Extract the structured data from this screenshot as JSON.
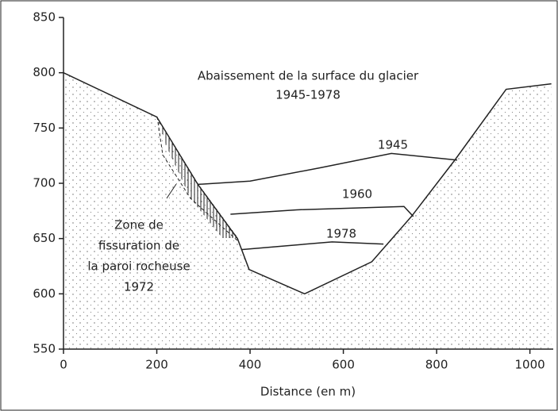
{
  "chart_data": {
    "type": "line",
    "title": "Abaissement de la surface du glacier",
    "subtitle": "1945-1978",
    "x_label": "Distance (en m)",
    "annotations": [
      "Zone de",
      "fissuration de",
      "la paroi rocheuse",
      "1972"
    ],
    "xlim": [
      0,
      1050
    ],
    "ylim": [
      550,
      850
    ],
    "xticks": [
      0,
      200,
      400,
      600,
      800,
      1000
    ],
    "yticks": [
      550,
      600,
      650,
      700,
      750,
      800,
      850
    ],
    "series": [
      {
        "color": "#222222",
        "x": [
          0,
          200,
          288,
          373,
          398,
          517,
          661,
          746,
          839,
          949,
          1046
        ],
        "values": [
          800,
          760,
          699,
          650,
          622,
          600,
          629,
          670,
          721,
          785,
          790
        ]
      },
      {
        "name": "1945",
        "color": "#222222",
        "x": [
          288,
          400,
          550,
          703,
          844
        ],
        "values": [
          699,
          702,
          714,
          727,
          721
        ]
      },
      {
        "name": "1960",
        "color": "#222222",
        "x": [
          358,
          500,
          730,
          750
        ],
        "values": [
          672,
          676,
          679,
          670
        ]
      },
      {
        "name": "1978",
        "color": "#222222",
        "x": [
          381,
          576,
          686
        ],
        "values": [
          640,
          647,
          645
        ]
      }
    ]
  }
}
